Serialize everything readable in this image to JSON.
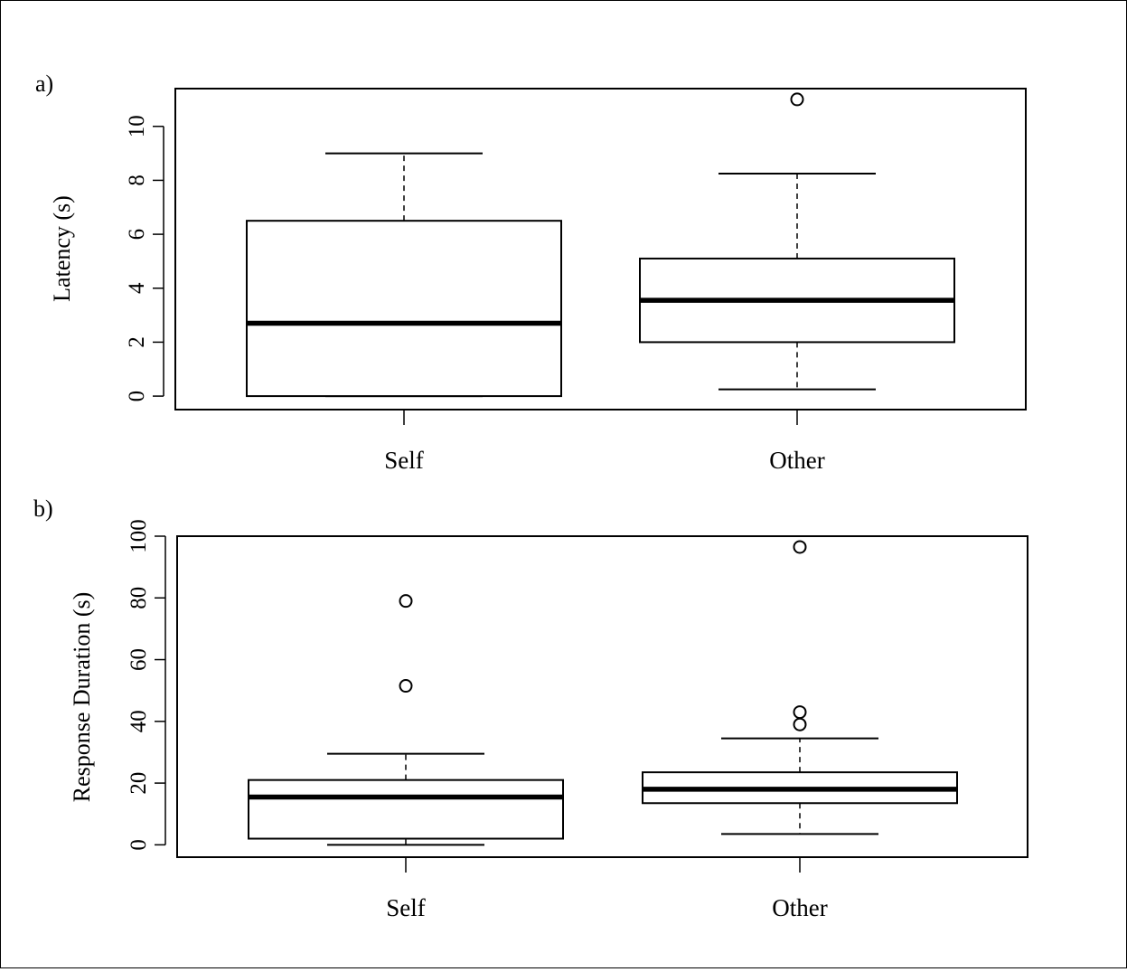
{
  "figure": {
    "background": "#ffffff",
    "ink": "#000000"
  },
  "chart_data": [
    {
      "type": "boxplot",
      "panel_label": "a)",
      "ylabel": "Latency (s)",
      "xlabel": "",
      "ylim": [
        -0.5,
        11.4
      ],
      "yticks": [
        0,
        2,
        4,
        6,
        8,
        10
      ],
      "categories": [
        "Self",
        "Other"
      ],
      "boxes": [
        {
          "category": "Self",
          "whisker_low": 0,
          "q1": 0,
          "median": 2.7,
          "q3": 6.5,
          "whisker_high": 9.0,
          "outliers": []
        },
        {
          "category": "Other",
          "whisker_low": 0.25,
          "q1": 2.0,
          "median": 3.55,
          "q3": 5.1,
          "whisker_high": 8.25,
          "outliers": [
            11.0
          ]
        }
      ]
    },
    {
      "type": "boxplot",
      "panel_label": "b)",
      "ylabel": "Response Duration (s)",
      "xlabel": "",
      "ylim": [
        -4,
        100
      ],
      "yticks": [
        0,
        20,
        40,
        60,
        80,
        100
      ],
      "categories": [
        "Self",
        "Other"
      ],
      "boxes": [
        {
          "category": "Self",
          "whisker_low": 0,
          "q1": 2.0,
          "median": 15.5,
          "q3": 21.0,
          "whisker_high": 29.5,
          "outliers": [
            51.5,
            79.0
          ]
        },
        {
          "category": "Other",
          "whisker_low": 3.5,
          "q1": 13.5,
          "median": 18.0,
          "q3": 23.5,
          "whisker_high": 34.5,
          "outliers": [
            39.0,
            43.0,
            96.5
          ]
        }
      ]
    }
  ]
}
